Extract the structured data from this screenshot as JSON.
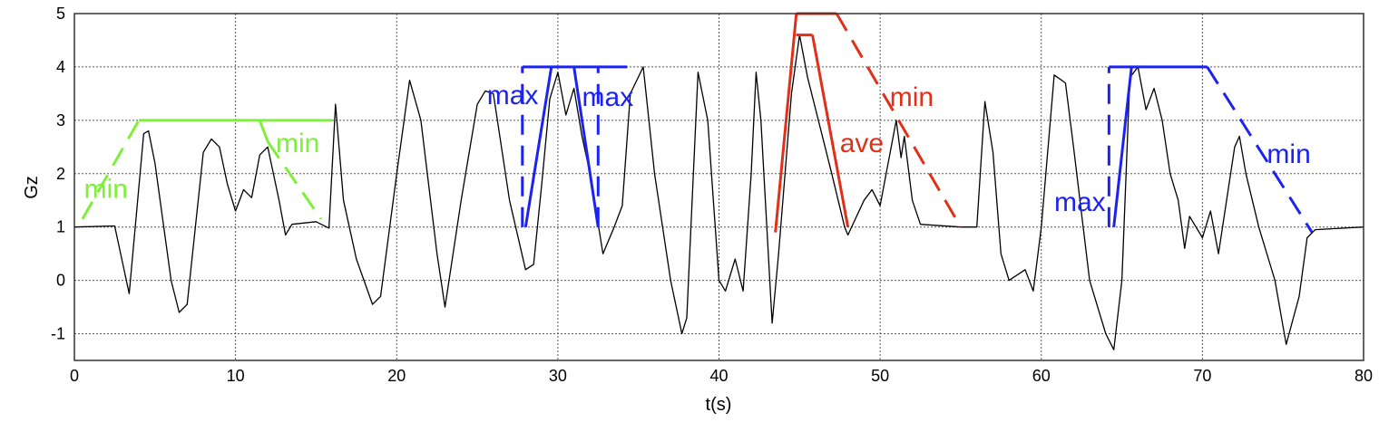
{
  "chart_data": {
    "type": "line",
    "title": "",
    "xlabel": "t(s)",
    "ylabel": "Gz",
    "xlim": [
      0,
      80
    ],
    "ylim": [
      -1.5,
      5
    ],
    "xticks": [
      0,
      10,
      20,
      30,
      40,
      50,
      60,
      70,
      80
    ],
    "yticks": [
      -1,
      0,
      1,
      2,
      3,
      4,
      5
    ],
    "grid": true,
    "series": [
      {
        "color": "#000000",
        "x": [
          0,
          2.5,
          3.4,
          4.3,
          4.6,
          5,
          6,
          6.5,
          7,
          8,
          8.5,
          9,
          9.5,
          10,
          10.5,
          11,
          11.5,
          12,
          12.7,
          13.1,
          13.5,
          15,
          15.8,
          16.2,
          16.7,
          17.5,
          18.5,
          19,
          20,
          20.8,
          21.5,
          22.5,
          23,
          24,
          25,
          25.5,
          26,
          27,
          28,
          28.5,
          29,
          29.5,
          30,
          30.5,
          31,
          31.5,
          32,
          32.8,
          33.5,
          34,
          34.5,
          35.3,
          36,
          37,
          37.7,
          38,
          38.7,
          39.3,
          40,
          40.4,
          41,
          41.5,
          42,
          42.3,
          42.6,
          43.3,
          43.7,
          44.5,
          45,
          45.5,
          46,
          47,
          47.8,
          48,
          49,
          49.5,
          50,
          51,
          51.3,
          51.5,
          52,
          52.5,
          55,
          56,
          56.5,
          57,
          57.5,
          58,
          59,
          59.5,
          60,
          60.8,
          61.5,
          62,
          63,
          64,
          64.5,
          65,
          65.5,
          66,
          66.5,
          67,
          67.5,
          68,
          68.5,
          68.9,
          69.2,
          70,
          70.5,
          71,
          72,
          72.3,
          72.7,
          73.5,
          74.5,
          75.2,
          76,
          76.5,
          77,
          80
        ],
        "y": [
          1,
          1.02,
          -0.25,
          2.75,
          2.8,
          2.2,
          0,
          -0.6,
          -0.45,
          2.4,
          2.65,
          2.5,
          1.8,
          1.3,
          1.7,
          1.55,
          2.35,
          2.5,
          1.5,
          0.85,
          1.05,
          1.1,
          0.98,
          3.3,
          1.5,
          0.4,
          -0.45,
          -0.3,
          2,
          3.75,
          3,
          0.5,
          -0.5,
          1.5,
          3.3,
          3.55,
          3.5,
          1.5,
          0.2,
          0.3,
          1.8,
          3.4,
          3.9,
          3.1,
          3.6,
          2.7,
          2,
          0.5,
          1,
          1.4,
          3.5,
          4,
          2,
          0,
          -1,
          -0.7,
          3.9,
          3,
          0,
          -0.2,
          0.4,
          -0.2,
          2,
          3.9,
          3,
          -0.8,
          0.5,
          3.5,
          4.6,
          3.8,
          3.2,
          2,
          1,
          0.85,
          1.5,
          1.7,
          1.4,
          3,
          2.3,
          2.7,
          1.5,
          1.05,
          1,
          1,
          3.35,
          2.4,
          0.5,
          0,
          0.2,
          -0.2,
          1,
          3.85,
          3.7,
          2.5,
          0,
          -1,
          -1.3,
          0,
          3.8,
          4,
          3.2,
          3.6,
          3,
          2,
          1.5,
          0.6,
          1.2,
          0.8,
          1.3,
          0.5,
          2.5,
          2.7,
          2,
          1,
          0,
          -1.2,
          -0.3,
          0.8,
          0.95,
          1
        ]
      }
    ],
    "annotations": {
      "colors": {
        "green": "#7ff03a",
        "blue": "#1c22f0",
        "red": "#e0301a"
      },
      "lines": [
        {
          "color": "green",
          "style": "dashed",
          "x": [
            0.5,
            4
          ],
          "y": [
            1.15,
            3
          ]
        },
        {
          "color": "green",
          "style": "solid",
          "x": [
            4,
            16
          ],
          "y": [
            3,
            3
          ]
        },
        {
          "color": "green",
          "style": "solid",
          "x": [
            11.5,
            12
          ],
          "y": [
            3,
            2.6
          ]
        },
        {
          "color": "green",
          "style": "dashed",
          "x": [
            12,
            15.3
          ],
          "y": [
            2.6,
            1.15
          ]
        },
        {
          "color": "blue",
          "style": "solid",
          "x": [
            27.8,
            34.3
          ],
          "y": [
            4,
            4
          ]
        },
        {
          "color": "blue",
          "style": "dashed",
          "x": [
            27.8,
            27.8
          ],
          "y": [
            1,
            4
          ]
        },
        {
          "color": "blue",
          "style": "solid",
          "x": [
            28,
            29.6
          ],
          "y": [
            1,
            4
          ]
        },
        {
          "color": "blue",
          "style": "solid",
          "x": [
            31,
            32.5
          ],
          "y": [
            4,
            1
          ]
        },
        {
          "color": "blue",
          "style": "dashed",
          "x": [
            32.5,
            32.5
          ],
          "y": [
            1,
            4
          ]
        },
        {
          "color": "red",
          "style": "solid",
          "x": [
            43.5,
            44.8
          ],
          "y": [
            0.9,
            5
          ]
        },
        {
          "color": "red",
          "style": "solid",
          "x": [
            44.8,
            47.3
          ],
          "y": [
            5,
            5
          ]
        },
        {
          "color": "red",
          "style": "solid",
          "x": [
            44.8,
            45.8
          ],
          "y": [
            4.6,
            4.6
          ]
        },
        {
          "color": "red",
          "style": "solid",
          "x": [
            45.8,
            48
          ],
          "y": [
            4.6,
            1
          ]
        },
        {
          "color": "red",
          "style": "dashed",
          "x": [
            47.3,
            55
          ],
          "y": [
            5,
            1
          ]
        },
        {
          "color": "blue",
          "style": "solid",
          "x": [
            64.2,
            70.3
          ],
          "y": [
            4,
            4
          ]
        },
        {
          "color": "blue",
          "style": "dashed",
          "x": [
            64.2,
            64.2
          ],
          "y": [
            1,
            4
          ]
        },
        {
          "color": "blue",
          "style": "solid",
          "x": [
            64.5,
            65.6
          ],
          "y": [
            1,
            4
          ]
        },
        {
          "color": "blue",
          "style": "dashed",
          "x": [
            70.3,
            76.8
          ],
          "y": [
            4,
            0.9
          ]
        }
      ],
      "labels": [
        {
          "text": "min",
          "color": "green",
          "x": 0.6,
          "y": 1.55
        },
        {
          "text": "min",
          "color": "green",
          "x": 12.5,
          "y": 2.4
        },
        {
          "text": "max",
          "color": "blue",
          "x": 25.6,
          "y": 3.3
        },
        {
          "text": "max",
          "color": "blue",
          "x": 31.5,
          "y": 3.27
        },
        {
          "text": "ave",
          "color": "red",
          "x": 47.5,
          "y": 2.4
        },
        {
          "text": "min",
          "color": "red",
          "x": 50.6,
          "y": 3.27
        },
        {
          "text": "max",
          "color": "blue",
          "x": 60.8,
          "y": 1.3
        },
        {
          "text": "min",
          "color": "blue",
          "x": 74,
          "y": 2.2
        }
      ]
    }
  }
}
